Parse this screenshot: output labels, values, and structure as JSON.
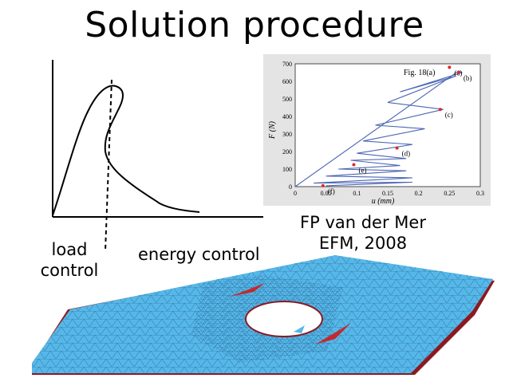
{
  "slide": {
    "title": "Solution procedure",
    "labels": {
      "load_control": "load\ncontrol",
      "energy_control": "energy control",
      "citation_line1": "FP van der Mer",
      "citation_line2": "EFM, 2008"
    }
  },
  "inset_plot": {
    "fig_label": "Fig. 18(a)",
    "ylabel": "F (N)",
    "xlabel": "u (mm)",
    "colors": {
      "curve": "#4a66b5",
      "marker": "#e0282a",
      "background": "#e4e4e4"
    }
  },
  "chart_data": {
    "type": "line",
    "xlabel": "u (mm)",
    "ylabel": "F (N)",
    "xlim": [
      0,
      0.3
    ],
    "ylim": [
      0,
      700
    ],
    "x_ticks": [
      "0",
      "0.05",
      "0.1",
      "0.15",
      "0.2",
      "0.25",
      "0.3"
    ],
    "y_ticks": [
      "0",
      "100",
      "200",
      "300",
      "400",
      "500",
      "600",
      "700"
    ],
    "series": [
      {
        "values": [
          [
            0,
            0
          ],
          [
            0.265,
            660
          ],
          [
            0.27,
            650
          ],
          [
            0.17,
            540
          ],
          [
            0.26,
            630
          ],
          [
            0.15,
            480
          ],
          [
            0.24,
            440
          ],
          [
            0.13,
            350
          ],
          [
            0.21,
            330
          ],
          [
            0.11,
            260
          ],
          [
            0.19,
            240
          ],
          [
            0.1,
            190
          ],
          [
            0.18,
            160
          ],
          [
            0.09,
            150
          ],
          [
            0.17,
            120
          ],
          [
            0.07,
            100
          ],
          [
            0.18,
            90
          ],
          [
            0.05,
            60
          ],
          [
            0.19,
            50
          ],
          [
            0.03,
            20
          ],
          [
            0.19,
            25
          ],
          [
            0.05,
            5
          ]
        ]
      }
    ],
    "markers": [
      {
        "label": "(a)",
        "x": 0.25,
        "y": 680
      },
      {
        "label": "(b)",
        "x": 0.265,
        "y": 650
      },
      {
        "label": "(c)",
        "x": 0.235,
        "y": 440
      },
      {
        "label": "(d)",
        "x": 0.165,
        "y": 220
      },
      {
        "label": "(e)",
        "x": 0.095,
        "y": 125
      },
      {
        "label": "(f)",
        "x": 0.045,
        "y": 5
      }
    ],
    "grid": false
  }
}
